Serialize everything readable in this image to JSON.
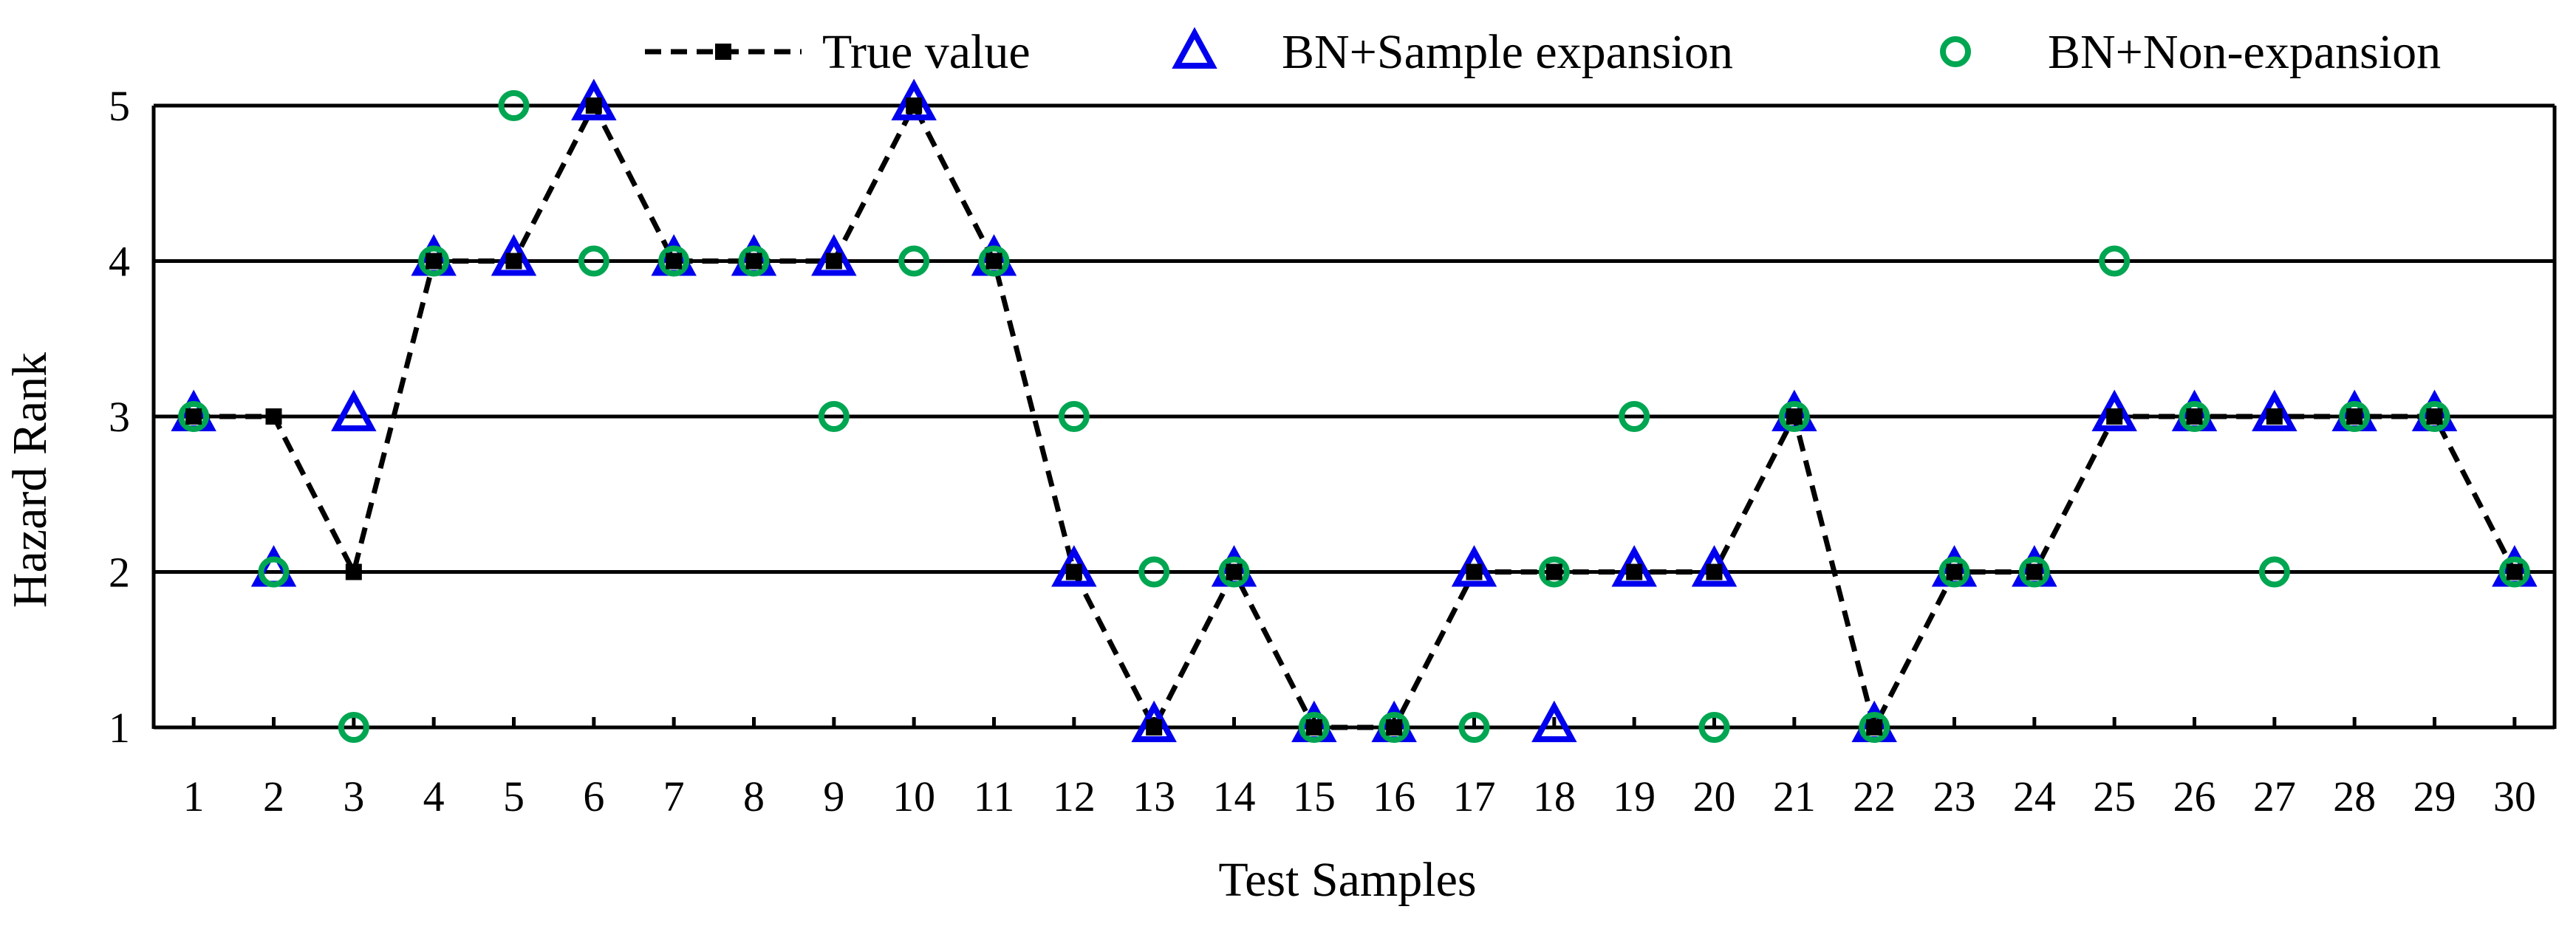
{
  "chart_data": {
    "type": "scatter",
    "title": "",
    "xlabel": "Test Samples",
    "ylabel": "Hazard Rank",
    "x": [
      1,
      2,
      3,
      4,
      5,
      6,
      7,
      8,
      9,
      10,
      11,
      12,
      13,
      14,
      15,
      16,
      17,
      18,
      19,
      20,
      21,
      22,
      23,
      24,
      25,
      26,
      27,
      28,
      29,
      30
    ],
    "xlim": [
      0.5,
      30.5
    ],
    "ylim": [
      1,
      5
    ],
    "yticks": [
      1,
      2,
      3,
      4,
      5
    ],
    "grid": "horizontal",
    "legend_position": "top",
    "series": [
      {
        "name": "True value",
        "style": "dashed-line-square",
        "color": "#000000",
        "values": [
          3,
          3,
          2,
          4,
          4,
          5,
          4,
          4,
          4,
          5,
          4,
          2,
          1,
          2,
          1,
          1,
          2,
          2,
          2,
          2,
          3,
          1,
          2,
          2,
          3,
          3,
          3,
          3,
          3,
          2
        ]
      },
      {
        "name": "BN+Sample expansion",
        "style": "open-triangle",
        "color": "#0000ee",
        "values": [
          3,
          2,
          3,
          4,
          4,
          5,
          4,
          4,
          4,
          5,
          4,
          2,
          1,
          2,
          1,
          1,
          2,
          1,
          2,
          2,
          3,
          1,
          2,
          2,
          3,
          3,
          3,
          3,
          3,
          2
        ]
      },
      {
        "name": "BN+Non-expansion",
        "style": "open-circle",
        "color": "#00a651",
        "values": [
          3,
          2,
          1,
          4,
          5,
          4,
          4,
          4,
          3,
          4,
          4,
          3,
          2,
          2,
          1,
          1,
          1,
          2,
          3,
          1,
          3,
          1,
          2,
          2,
          4,
          3,
          2,
          3,
          3,
          2
        ]
      }
    ]
  }
}
